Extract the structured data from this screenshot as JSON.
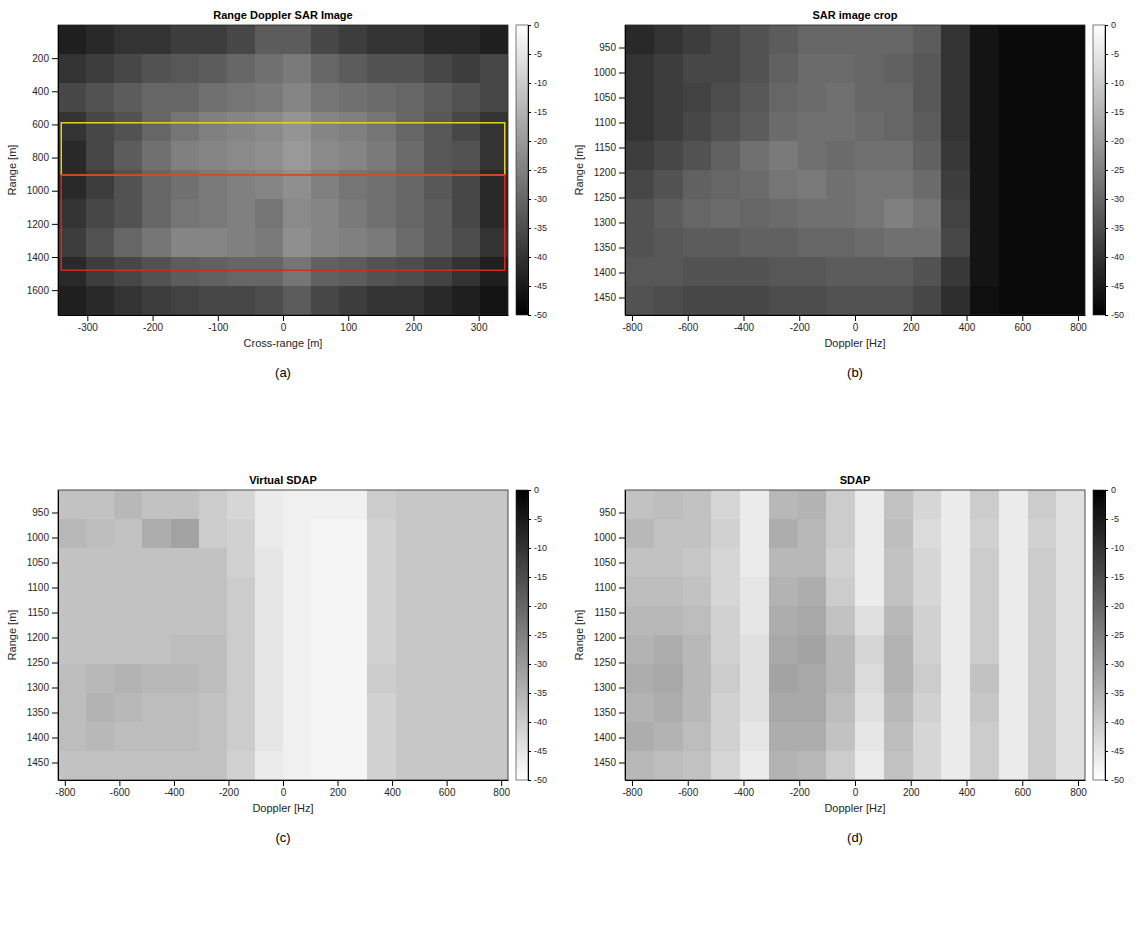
{
  "chart_data": [
    {
      "type": "heatmap",
      "title": "Range Doppler SAR Image",
      "x_label": "Cross-range [m]",
      "y_label": "Range [m]",
      "label": "(a)",
      "xlim": [
        -345,
        345
      ],
      "xticks": [
        -300,
        -200,
        -100,
        0,
        100,
        200,
        300
      ],
      "ylim": [
        0,
        1750
      ],
      "yticks": [
        200,
        400,
        600,
        800,
        1000,
        1200,
        1400,
        1600
      ],
      "x_edges": [
        -345,
        -301.875,
        -258.75,
        -215.625,
        -172.5,
        -129.375,
        -86.25,
        -43.125,
        0,
        43.125,
        86.25,
        129.375,
        172.5,
        215.625,
        258.75,
        301.875,
        345
      ],
      "y_edges": [
        0,
        175,
        350,
        525,
        700,
        875,
        1050,
        1225,
        1400,
        1575,
        1750
      ],
      "cells": [
        [
          -44,
          -42,
          -40,
          -40,
          -38,
          -38,
          -36,
          -32,
          -32,
          -36,
          -38,
          -40,
          -40,
          -42,
          -42,
          -44
        ],
        [
          -40,
          -38,
          -36,
          -34,
          -33,
          -32,
          -30,
          -28,
          -26,
          -30,
          -32,
          -34,
          -34,
          -36,
          -38,
          -36
        ],
        [
          -36,
          -34,
          -32,
          -30,
          -30,
          -28,
          -27,
          -26,
          -24,
          -27,
          -28,
          -29,
          -30,
          -32,
          -34,
          -36
        ],
        [
          -40,
          -36,
          -34,
          -30,
          -27,
          -25,
          -24,
          -23,
          -21,
          -24,
          -25,
          -27,
          -30,
          -33,
          -36,
          -40
        ],
        [
          -42,
          -36,
          -32,
          -28,
          -25,
          -24,
          -23,
          -22,
          -20,
          -23,
          -24,
          -26,
          -29,
          -33,
          -34,
          -40
        ],
        [
          -42,
          -38,
          -34,
          -30,
          -28,
          -26,
          -25,
          -24,
          -22,
          -25,
          -27,
          -28,
          -30,
          -33,
          -36,
          -42
        ],
        [
          -40,
          -36,
          -34,
          -30,
          -27,
          -26,
          -25,
          -27,
          -23,
          -24,
          -26,
          -28,
          -30,
          -32,
          -36,
          -42
        ],
        [
          -38,
          -34,
          -30,
          -27,
          -24,
          -24,
          -25,
          -26,
          -22,
          -24,
          -25,
          -26,
          -29,
          -32,
          -35,
          -40
        ],
        [
          -42,
          -38,
          -36,
          -34,
          -32,
          -31,
          -30,
          -30,
          -27,
          -31,
          -32,
          -34,
          -35,
          -37,
          -40,
          -44
        ],
        [
          -44,
          -42,
          -40,
          -38,
          -37,
          -36,
          -36,
          -35,
          -32,
          -36,
          -38,
          -40,
          -40,
          -42,
          -44,
          -46
        ]
      ],
      "colorbar": {
        "range": [
          -50,
          0
        ],
        "ticks": [
          0,
          -5,
          -10,
          -15,
          -20,
          -25,
          -30,
          -35,
          -40,
          -45,
          -50
        ],
        "colors": [
          "#000000",
          "#ffffff"
        ]
      },
      "regions": [
        {
          "color": "#e6d21e",
          "x": [
            -340,
            340
          ],
          "y": [
            590,
            905
          ]
        },
        {
          "color": "#d8281e",
          "x": [
            -340,
            340
          ],
          "y": [
            905,
            1480
          ]
        }
      ]
    },
    {
      "type": "heatmap",
      "title": "SAR image crop",
      "x_label": "Doppler [Hz]",
      "y_label": "Range [m]",
      "label": "(b)",
      "xlim": [
        -825,
        825
      ],
      "xticks": [
        -800,
        -600,
        -400,
        -200,
        0,
        200,
        400,
        600,
        800
      ],
      "ylim": [
        905,
        1485
      ],
      "yticks": [
        950,
        1000,
        1050,
        1100,
        1150,
        1200,
        1250,
        1300,
        1350,
        1400,
        1450
      ],
      "x_edges": [
        -825,
        -721.875,
        -618.75,
        -515.625,
        -412.5,
        -309.375,
        -206.25,
        -103.125,
        0,
        103.125,
        206.25,
        309.375,
        412.5,
        515.625,
        618.75,
        721.875,
        825
      ],
      "y_edges": [
        905,
        963,
        1021,
        1079,
        1137,
        1195,
        1253,
        1311,
        1369,
        1427,
        1485
      ],
      "cells": [
        [
          -42,
          -40,
          -38,
          -36,
          -34,
          -32,
          -30,
          -30,
          -30,
          -30,
          -32,
          -40,
          -46,
          -48,
          -48,
          -48
        ],
        [
          -40,
          -38,
          -36,
          -36,
          -34,
          -31,
          -29,
          -29,
          -30,
          -31,
          -33,
          -40,
          -46,
          -48,
          -48,
          -48
        ],
        [
          -40,
          -38,
          -37,
          -35,
          -33,
          -30,
          -29,
          -28,
          -30,
          -30,
          -33,
          -40,
          -46,
          -48,
          -48,
          -48
        ],
        [
          -40,
          -38,
          -36,
          -34,
          -32,
          -29,
          -28,
          -28,
          -29,
          -30,
          -32,
          -40,
          -46,
          -48,
          -48,
          -48
        ],
        [
          -38,
          -36,
          -34,
          -31,
          -28,
          -26,
          -28,
          -29,
          -28,
          -28,
          -31,
          -39,
          -46,
          -48,
          -48,
          -48
        ],
        [
          -36,
          -34,
          -31,
          -30,
          -29,
          -27,
          -26,
          -28,
          -27,
          -27,
          -29,
          -38,
          -46,
          -48,
          -48,
          -48
        ],
        [
          -34,
          -32,
          -30,
          -29,
          -30,
          -29,
          -28,
          -28,
          -27,
          -25,
          -27,
          -37,
          -46,
          -48,
          -48,
          -48
        ],
        [
          -34,
          -33,
          -32,
          -32,
          -31,
          -31,
          -30,
          -30,
          -29,
          -28,
          -28,
          -36,
          -46,
          -48,
          -48,
          -48
        ],
        [
          -33,
          -33,
          -34,
          -34,
          -34,
          -33,
          -33,
          -32,
          -32,
          -32,
          -34,
          -39,
          -46,
          -48,
          -48,
          -48
        ],
        [
          -34,
          -35,
          -36,
          -36,
          -36,
          -35,
          -35,
          -34,
          -34,
          -34,
          -36,
          -41,
          -47,
          -48,
          -48,
          -48
        ]
      ],
      "colorbar": {
        "range": [
          -50,
          0
        ],
        "ticks": [
          0,
          -5,
          -10,
          -15,
          -20,
          -25,
          -30,
          -35,
          -40,
          -45,
          -50
        ],
        "colors": [
          "#000000",
          "#ffffff"
        ]
      }
    },
    {
      "type": "heatmap",
      "title": "Virtual SDAP",
      "x_label": "Doppler [Hz]",
      "y_label": "Range [m]",
      "label": "(c)",
      "xlim": [
        -825,
        825
      ],
      "xticks": [
        -800,
        -600,
        -400,
        -200,
        0,
        200,
        400,
        600,
        800
      ],
      "ylim": [
        905,
        1485
      ],
      "yticks": [
        950,
        1000,
        1050,
        1100,
        1150,
        1200,
        1250,
        1300,
        1350,
        1400,
        1450
      ],
      "x_edges": [
        -825,
        -721.875,
        -618.75,
        -515.625,
        -412.5,
        -309.375,
        -206.25,
        -103.125,
        0,
        103.125,
        206.25,
        309.375,
        412.5,
        515.625,
        618.75,
        721.875,
        825
      ],
      "y_edges": [
        905,
        963,
        1021,
        1079,
        1137,
        1195,
        1253,
        1311,
        1369,
        1427,
        1485
      ],
      "cells": [
        [
          -38,
          -38,
          -36,
          -38,
          -38,
          -40,
          -42,
          -46,
          -47,
          -47,
          -47,
          -40,
          -39,
          -39,
          -39,
          -39
        ],
        [
          -36,
          -37,
          -38,
          -34,
          -32,
          -40,
          -41,
          -46,
          -47,
          -48,
          -48,
          -41,
          -39,
          -39,
          -39,
          -39
        ],
        [
          -38,
          -38,
          -38,
          -38,
          -38,
          -38,
          -41,
          -45,
          -47,
          -48,
          -48,
          -41,
          -39,
          -39,
          -39,
          -39
        ],
        [
          -38,
          -38,
          -38,
          -38,
          -38,
          -38,
          -40,
          -45,
          -47,
          -48,
          -48,
          -41,
          -39,
          -39,
          -39,
          -39
        ],
        [
          -38,
          -38,
          -38,
          -38,
          -38,
          -38,
          -40,
          -45,
          -47,
          -48,
          -48,
          -41,
          -39,
          -39,
          -39,
          -39
        ],
        [
          -38,
          -38,
          -38,
          -38,
          -37,
          -37,
          -40,
          -45,
          -47,
          -48,
          -48,
          -41,
          -39,
          -39,
          -39,
          -39
        ],
        [
          -37,
          -36,
          -35,
          -36,
          -36,
          -37,
          -40,
          -45,
          -47,
          -48,
          -48,
          -40,
          -39,
          -39,
          -39,
          -39
        ],
        [
          -37,
          -35,
          -36,
          -37,
          -37,
          -38,
          -40,
          -45,
          -47,
          -48,
          -48,
          -41,
          -39,
          -39,
          -39,
          -39
        ],
        [
          -37,
          -36,
          -37,
          -37,
          -37,
          -38,
          -40,
          -45,
          -47,
          -48,
          -48,
          -41,
          -39,
          -39,
          -39,
          -39
        ],
        [
          -38,
          -38,
          -38,
          -38,
          -38,
          -38,
          -41,
          -46,
          -47,
          -48,
          -48,
          -41,
          -39,
          -39,
          -39,
          -39
        ]
      ],
      "colorbar": {
        "range": [
          -50,
          0
        ],
        "ticks": [
          0,
          -5,
          -10,
          -15,
          -20,
          -25,
          -30,
          -35,
          -40,
          -45,
          -50
        ],
        "colors": [
          "#ffffff",
          "#000000"
        ]
      }
    },
    {
      "type": "heatmap",
      "title": "SDAP",
      "x_label": "Doppler [Hz]",
      "y_label": "Range [m]",
      "label": "(d)",
      "xlim": [
        -825,
        825
      ],
      "xticks": [
        -800,
        -600,
        -400,
        -200,
        0,
        200,
        400,
        600,
        800
      ],
      "ylim": [
        905,
        1485
      ],
      "yticks": [
        950,
        1000,
        1050,
        1100,
        1150,
        1200,
        1250,
        1300,
        1350,
        1400,
        1450
      ],
      "x_edges": [
        -825,
        -721.875,
        -618.75,
        -515.625,
        -412.5,
        -309.375,
        -206.25,
        -103.125,
        0,
        103.125,
        206.25,
        309.375,
        412.5,
        515.625,
        618.75,
        721.875,
        825
      ],
      "y_edges": [
        905,
        963,
        1021,
        1079,
        1137,
        1195,
        1253,
        1311,
        1369,
        1427,
        1485
      ],
      "cells": [
        [
          -38,
          -37,
          -38,
          -42,
          -46,
          -36,
          -35,
          -40,
          -46,
          -38,
          -42,
          -46,
          -40,
          -46,
          -40,
          -44
        ],
        [
          -36,
          -38,
          -38,
          -41,
          -46,
          -34,
          -36,
          -40,
          -46,
          -37,
          -43,
          -46,
          -41,
          -46,
          -41,
          -44
        ],
        [
          -38,
          -38,
          -39,
          -42,
          -46,
          -36,
          -36,
          -41,
          -46,
          -38,
          -42,
          -46,
          -40,
          -46,
          -40,
          -44
        ],
        [
          -37,
          -37,
          -38,
          -42,
          -45,
          -35,
          -34,
          -40,
          -46,
          -38,
          -42,
          -46,
          -40,
          -46,
          -40,
          -44
        ],
        [
          -36,
          -36,
          -37,
          -41,
          -45,
          -34,
          -33,
          -38,
          -44,
          -36,
          -41,
          -46,
          -40,
          -46,
          -40,
          -44
        ],
        [
          -35,
          -34,
          -36,
          -41,
          -44,
          -33,
          -32,
          -36,
          -42,
          -35,
          -41,
          -46,
          -40,
          -46,
          -40,
          -44
        ],
        [
          -34,
          -33,
          -36,
          -40,
          -44,
          -32,
          -33,
          -36,
          -43,
          -35,
          -40,
          -46,
          -38,
          -46,
          -40,
          -44
        ],
        [
          -35,
          -34,
          -36,
          -41,
          -44,
          -33,
          -33,
          -37,
          -44,
          -36,
          -41,
          -46,
          -39,
          -46,
          -40,
          -44
        ],
        [
          -34,
          -35,
          -37,
          -41,
          -45,
          -34,
          -34,
          -38,
          -45,
          -37,
          -42,
          -46,
          -40,
          -46,
          -40,
          -44
        ],
        [
          -36,
          -37,
          -38,
          -42,
          -46,
          -35,
          -36,
          -40,
          -46,
          -38,
          -42,
          -46,
          -40,
          -46,
          -40,
          -44
        ]
      ],
      "colorbar": {
        "range": [
          -50,
          0
        ],
        "ticks": [
          0,
          -5,
          -10,
          -15,
          -20,
          -25,
          -30,
          -35,
          -40,
          -45,
          -50
        ],
        "colors": [
          "#ffffff",
          "#000000"
        ]
      }
    }
  ]
}
